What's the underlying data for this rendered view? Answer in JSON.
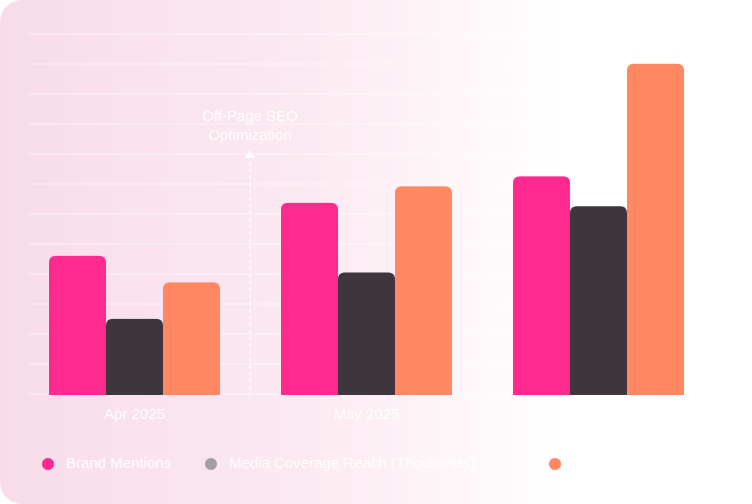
{
  "chart_data": {
    "type": "bar",
    "categories": [
      "Apr 2025",
      "May 2025",
      ""
    ],
    "series": [
      {
        "name": "Brand Mentions",
        "color": "#ff2a8f",
        "values": [
          42,
          58,
          66
        ]
      },
      {
        "name": "Media Coverage Reach (Thousands)",
        "color": "#3e353d",
        "values": [
          23,
          37,
          57
        ]
      },
      {
        "name": "",
        "color": "#ff8862",
        "values": [
          34,
          63,
          100
        ]
      }
    ],
    "legend_dot_colors": [
      "#ff2a8f",
      "#a89fa6",
      "#ff8862"
    ],
    "ylim": [
      0,
      109
    ],
    "grid": true,
    "legend_placement": "bottom-left",
    "annotation": {
      "text_line1": "Off-Page SEO",
      "text_line2": "Optimization",
      "position": "between Apr 2025 and May 2025",
      "style": "dashed arrow up"
    }
  }
}
